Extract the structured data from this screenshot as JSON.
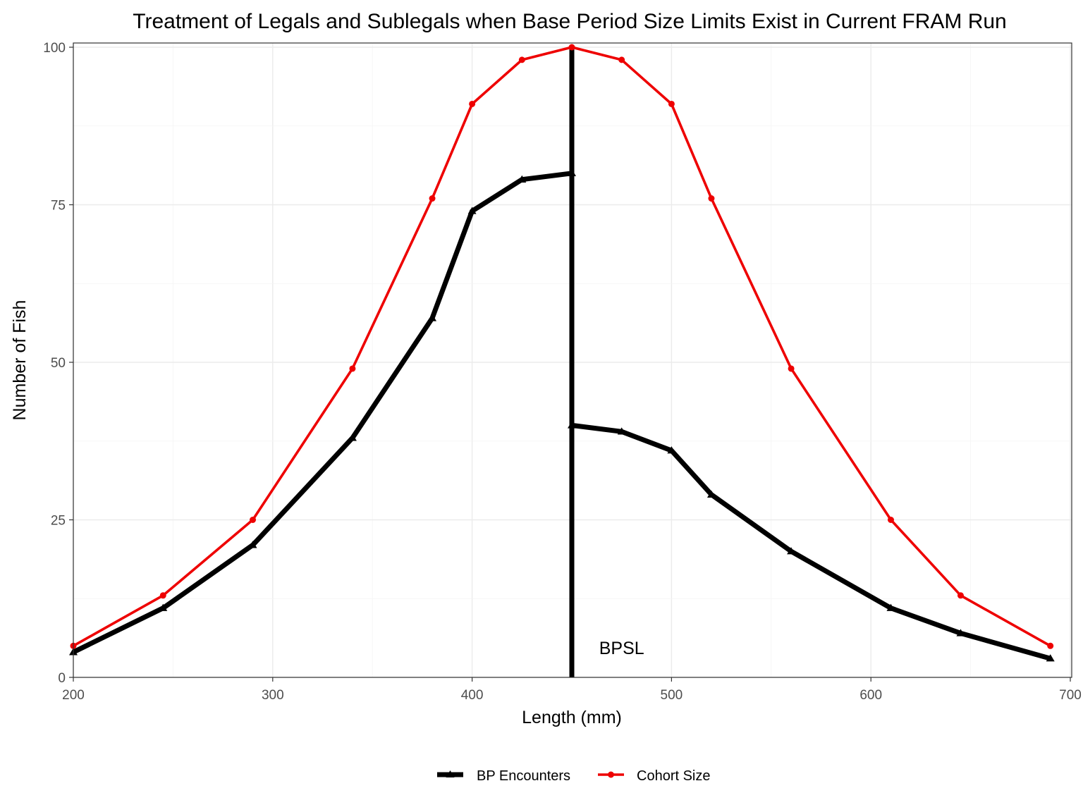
{
  "chart_data": {
    "type": "line",
    "title": "Treatment of Legals and Sublegals when Base Period Size Limits Exist in Current FRAM Run",
    "xlabel": "Length (mm)",
    "ylabel": "Number of Fish",
    "xlim": [
      200,
      700
    ],
    "ylim": [
      0,
      100
    ],
    "x_ticks": [
      200,
      300,
      400,
      500,
      600,
      700
    ],
    "y_ticks": [
      0,
      25,
      50,
      75,
      100
    ],
    "grid": true,
    "legend_position": "bottom",
    "series": [
      {
        "name": "BP Encounters",
        "color": "#000000",
        "marker": "triangle",
        "segments": [
          {
            "x": [
              200,
              245,
              290,
              340,
              380,
              400,
              425,
              450
            ],
            "y": [
              4,
              11,
              21,
              38,
              57,
              74,
              79,
              80
            ]
          },
          {
            "x": [
              450,
              475,
              500,
              520,
              560,
              610,
              645,
              690
            ],
            "y": [
              40,
              39,
              36,
              29,
              20,
              11,
              7,
              3
            ]
          }
        ]
      },
      {
        "name": "Cohort Size",
        "color": "#ee0000",
        "marker": "circle",
        "segments": [
          {
            "x": [
              200,
              245,
              290,
              340,
              380,
              400,
              425,
              450,
              475,
              500,
              520,
              560,
              610,
              645,
              690
            ],
            "y": [
              5,
              13,
              25,
              49,
              76,
              91,
              98,
              100,
              98,
              91,
              76,
              49,
              25,
              13,
              5
            ]
          }
        ]
      }
    ],
    "vline": {
      "x": 450,
      "label": "BPSL",
      "label_x": 475,
      "label_y": 4.7,
      "color": "#000000"
    }
  }
}
